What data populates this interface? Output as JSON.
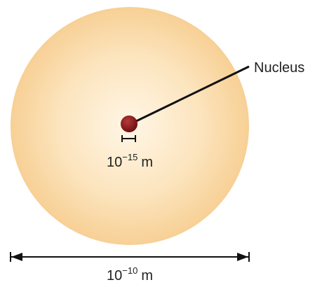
{
  "labels": {
    "nucleus": "Nucleus",
    "nucleus_size": {
      "base": "10",
      "exponent": "−15",
      "unit": "m"
    },
    "atom_size": {
      "base": "10",
      "exponent": "−10",
      "unit": "m"
    }
  }
}
